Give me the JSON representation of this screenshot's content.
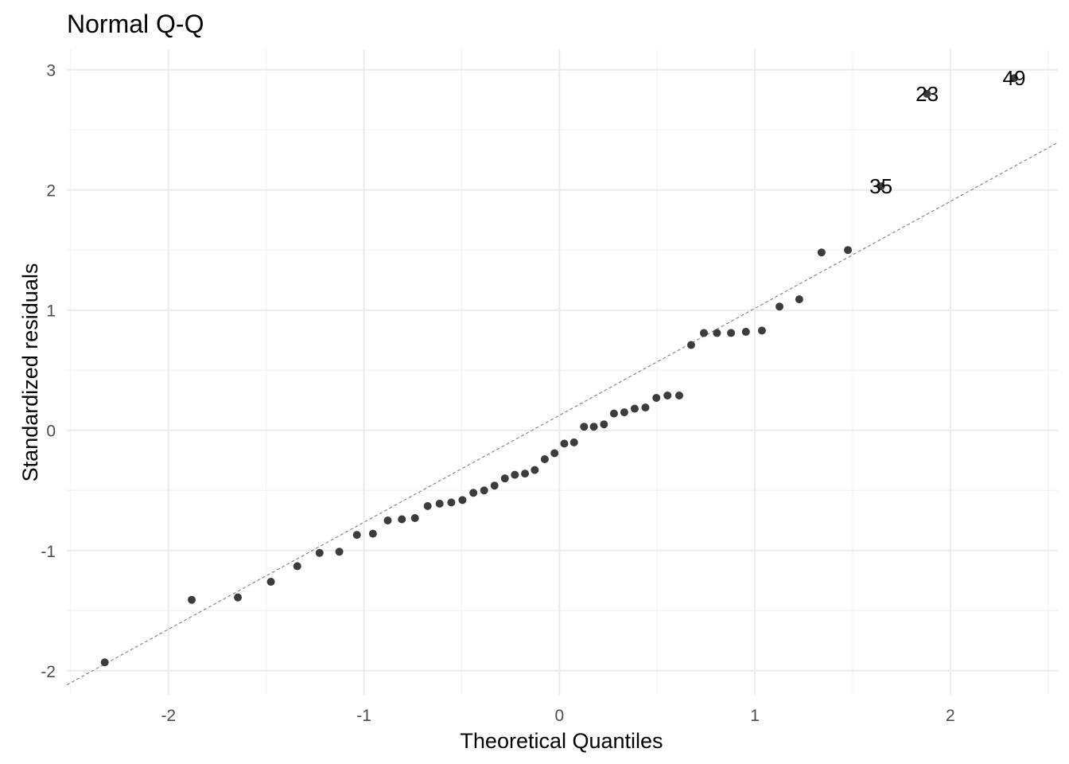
{
  "chart_data": {
    "type": "scatter",
    "title": "Normal Q-Q",
    "xlabel": "Theoretical Quantiles",
    "ylabel": "Standardized residuals",
    "xlim": [
      -2.52,
      2.55
    ],
    "ylim": [
      -2.2,
      3.17
    ],
    "x_ticks": [
      -2,
      -1,
      0,
      1,
      2
    ],
    "y_ticks": [
      -2,
      -1,
      0,
      1,
      2,
      3
    ],
    "x_tick_labels": [
      "-2",
      "-1",
      "0",
      "1",
      "2"
    ],
    "y_tick_labels": [
      "-2",
      "-1",
      "0",
      "1",
      "2",
      "3"
    ],
    "grid": true,
    "reference_line": {
      "intercept": 0.125,
      "slope": 0.89,
      "style": "dashed"
    },
    "points": [
      {
        "x": -2.326,
        "y": -1.93
      },
      {
        "x": -1.881,
        "y": -1.41
      },
      {
        "x": -1.645,
        "y": -1.39
      },
      {
        "x": -1.476,
        "y": -1.26
      },
      {
        "x": -1.341,
        "y": -1.13
      },
      {
        "x": -1.227,
        "y": -1.02
      },
      {
        "x": -1.126,
        "y": -1.01
      },
      {
        "x": -1.036,
        "y": -0.87
      },
      {
        "x": -0.954,
        "y": -0.86
      },
      {
        "x": -0.878,
        "y": -0.75
      },
      {
        "x": -0.806,
        "y": -0.74
      },
      {
        "x": -0.739,
        "y": -0.73
      },
      {
        "x": -0.674,
        "y": -0.63
      },
      {
        "x": -0.613,
        "y": -0.61
      },
      {
        "x": -0.553,
        "y": -0.6
      },
      {
        "x": -0.496,
        "y": -0.58
      },
      {
        "x": -0.44,
        "y": -0.52
      },
      {
        "x": -0.385,
        "y": -0.5
      },
      {
        "x": -0.332,
        "y": -0.46
      },
      {
        "x": -0.279,
        "y": -0.4
      },
      {
        "x": -0.228,
        "y": -0.37
      },
      {
        "x": -0.176,
        "y": -0.36
      },
      {
        "x": -0.126,
        "y": -0.33
      },
      {
        "x": -0.075,
        "y": -0.24
      },
      {
        "x": -0.025,
        "y": -0.19
      },
      {
        "x": 0.025,
        "y": -0.11
      },
      {
        "x": 0.075,
        "y": -0.1
      },
      {
        "x": 0.126,
        "y": 0.03
      },
      {
        "x": 0.176,
        "y": 0.03
      },
      {
        "x": 0.228,
        "y": 0.05
      },
      {
        "x": 0.279,
        "y": 0.14
      },
      {
        "x": 0.332,
        "y": 0.15
      },
      {
        "x": 0.385,
        "y": 0.18
      },
      {
        "x": 0.44,
        "y": 0.19
      },
      {
        "x": 0.496,
        "y": 0.27
      },
      {
        "x": 0.553,
        "y": 0.29
      },
      {
        "x": 0.613,
        "y": 0.29
      },
      {
        "x": 0.674,
        "y": 0.71
      },
      {
        "x": 0.739,
        "y": 0.81
      },
      {
        "x": 0.806,
        "y": 0.81
      },
      {
        "x": 0.878,
        "y": 0.81
      },
      {
        "x": 0.954,
        "y": 0.82
      },
      {
        "x": 1.036,
        "y": 0.83
      },
      {
        "x": 1.126,
        "y": 1.03
      },
      {
        "x": 1.227,
        "y": 1.09
      },
      {
        "x": 1.341,
        "y": 1.48
      },
      {
        "x": 1.476,
        "y": 1.5
      },
      {
        "x": 1.645,
        "y": 2.03,
        "label": "35"
      },
      {
        "x": 1.881,
        "y": 2.8,
        "label": "23"
      },
      {
        "x": 2.326,
        "y": 2.93,
        "label": "49"
      }
    ]
  }
}
